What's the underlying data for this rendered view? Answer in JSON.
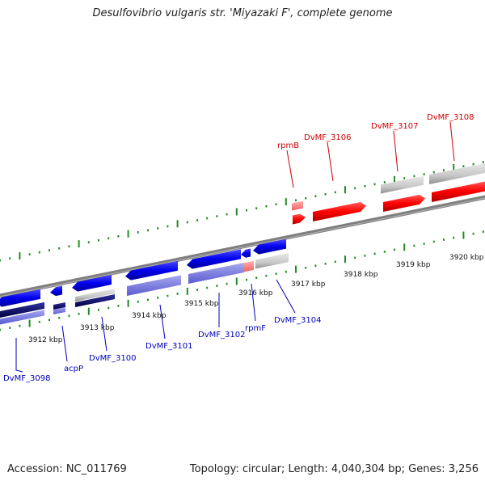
{
  "title": "Desulfovibrio vulgaris str. 'Miyazaki F', complete genome",
  "footer": {
    "accession": "Accession: NC_011769",
    "summary": "Topology: circular; Length: 4,040,304 bp; Genes: 3,256"
  },
  "colors": {
    "forward_gene": "#ff0000",
    "forward_label": "#cc0000",
    "reverse_gene": "#0000ee",
    "reverse_label": "#0000bb",
    "tick": "#228b22",
    "backbone": "#888888"
  },
  "scale_labels": [
    "3912 kbp",
    "3913 kbp",
    "3914 kbp",
    "3915 kbp",
    "3916 kbp",
    "3917 kbp",
    "3918 kbp",
    "3919 kbp",
    "3920 kbp"
  ],
  "forward_genes": [
    {
      "name": "rpmB"
    },
    {
      "name": "DvMF_3106"
    },
    {
      "name": "DvMF_3107"
    },
    {
      "name": "DvMF_3108"
    }
  ],
  "reverse_genes": [
    {
      "name": "DvMF_3098"
    },
    {
      "name": "acpP"
    },
    {
      "name": "DvMF_3100"
    },
    {
      "name": "DvMF_3101"
    },
    {
      "name": "DvMF_3102"
    },
    {
      "name": "rpmF"
    },
    {
      "name": "DvMF_3104"
    }
  ]
}
